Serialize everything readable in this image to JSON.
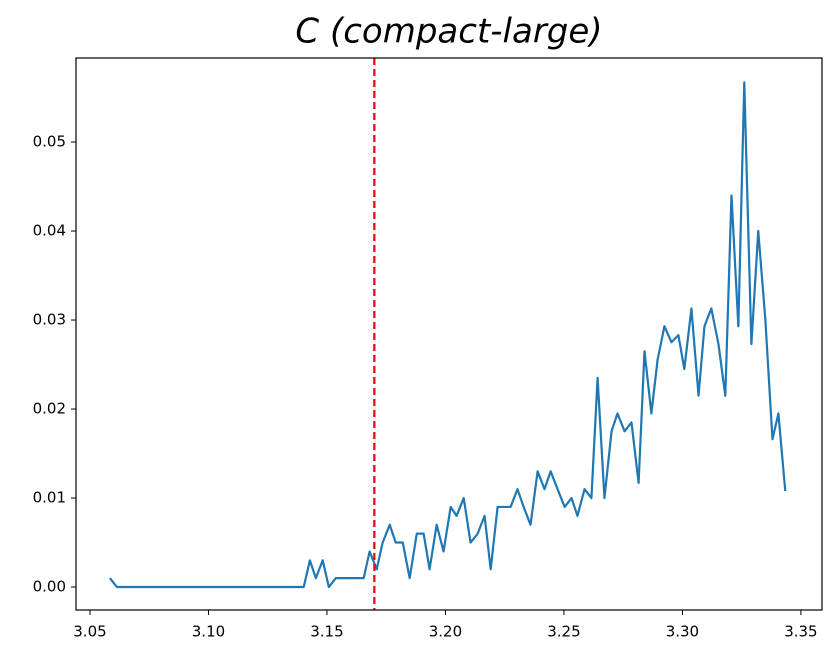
{
  "chart_data": {
    "type": "line",
    "title": "C (compact-large)",
    "x": [
      3.0584,
      3.0614,
      3.1402,
      3.1428,
      3.1453,
      3.1482,
      3.1508,
      3.1537,
      3.1655,
      3.168,
      3.171,
      3.1735,
      3.1765,
      3.179,
      3.182,
      3.1849,
      3.1879,
      3.1908,
      3.1933,
      3.1963,
      3.1992,
      3.2022,
      3.2047,
      3.2077,
      3.2106,
      3.2136,
      3.2165,
      3.2191,
      3.222,
      3.2245,
      3.2275,
      3.2304,
      3.233,
      3.2359,
      3.2389,
      3.2418,
      3.2444,
      3.2473,
      3.2503,
      3.2532,
      3.2557,
      3.2587,
      3.2616,
      3.2642,
      3.2671,
      3.2701,
      3.2726,
      3.2756,
      3.2785,
      3.2815,
      3.284,
      3.2869,
      3.2895,
      3.2924,
      3.2954,
      3.2983,
      3.3008,
      3.3038,
      3.3068,
      3.3093,
      3.3122,
      3.3152,
      3.3181,
      3.3207,
      3.3236,
      3.3261,
      3.3291,
      3.332,
      3.335,
      3.338,
      3.3405,
      3.3434
    ],
    "series": [
      {
        "color": "#1f77b4",
        "values": [
          0.001,
          0,
          0,
          0.003,
          0.001,
          0.003,
          0,
          0.001,
          0.001,
          0.004,
          0.002,
          0.005,
          0.007,
          0.005,
          0.005,
          0.001,
          0.006,
          0.006,
          0.002,
          0.007,
          0.004,
          0.009,
          0.008,
          0.01,
          0.005,
          0.006,
          0.008,
          0.002,
          0.009,
          0.009,
          0.009,
          0.011,
          0.009,
          0.007,
          0.013,
          0.011,
          0.013,
          0.011,
          0.009,
          0.01,
          0.008,
          0.011,
          0.01,
          0.0235,
          0.01,
          0.0175,
          0.0195,
          0.0175,
          0.0185,
          0.0117,
          0.0265,
          0.0195,
          0.0255,
          0.0293,
          0.0275,
          0.0283,
          0.0245,
          0.0313,
          0.0215,
          0.0293,
          0.0313,
          0.0273,
          0.0215,
          0.044,
          0.0293,
          0.0567,
          0.0273,
          0.04,
          0.03,
          0.0166,
          0.0195,
          0.0108
        ]
      }
    ],
    "xlim": [
      3.0441,
      3.3589
    ],
    "ylim": [
      -0.00258,
      0.05944
    ],
    "xticks": [
      3.05,
      {
        "value": 3.1,
        "label": "3.10"
      },
      3.15,
      {
        "value": 3.2,
        "label": "3.20"
      },
      3.25,
      {
        "value": 3.3,
        "label": "3.30"
      },
      3.35
    ],
    "yticks": [
      {
        "value": 0,
        "label": "0.00"
      },
      0.01,
      0.02,
      0.03,
      0.04,
      0.05
    ],
    "vline": {
      "x": 3.17,
      "color": "#e8000b"
    }
  }
}
